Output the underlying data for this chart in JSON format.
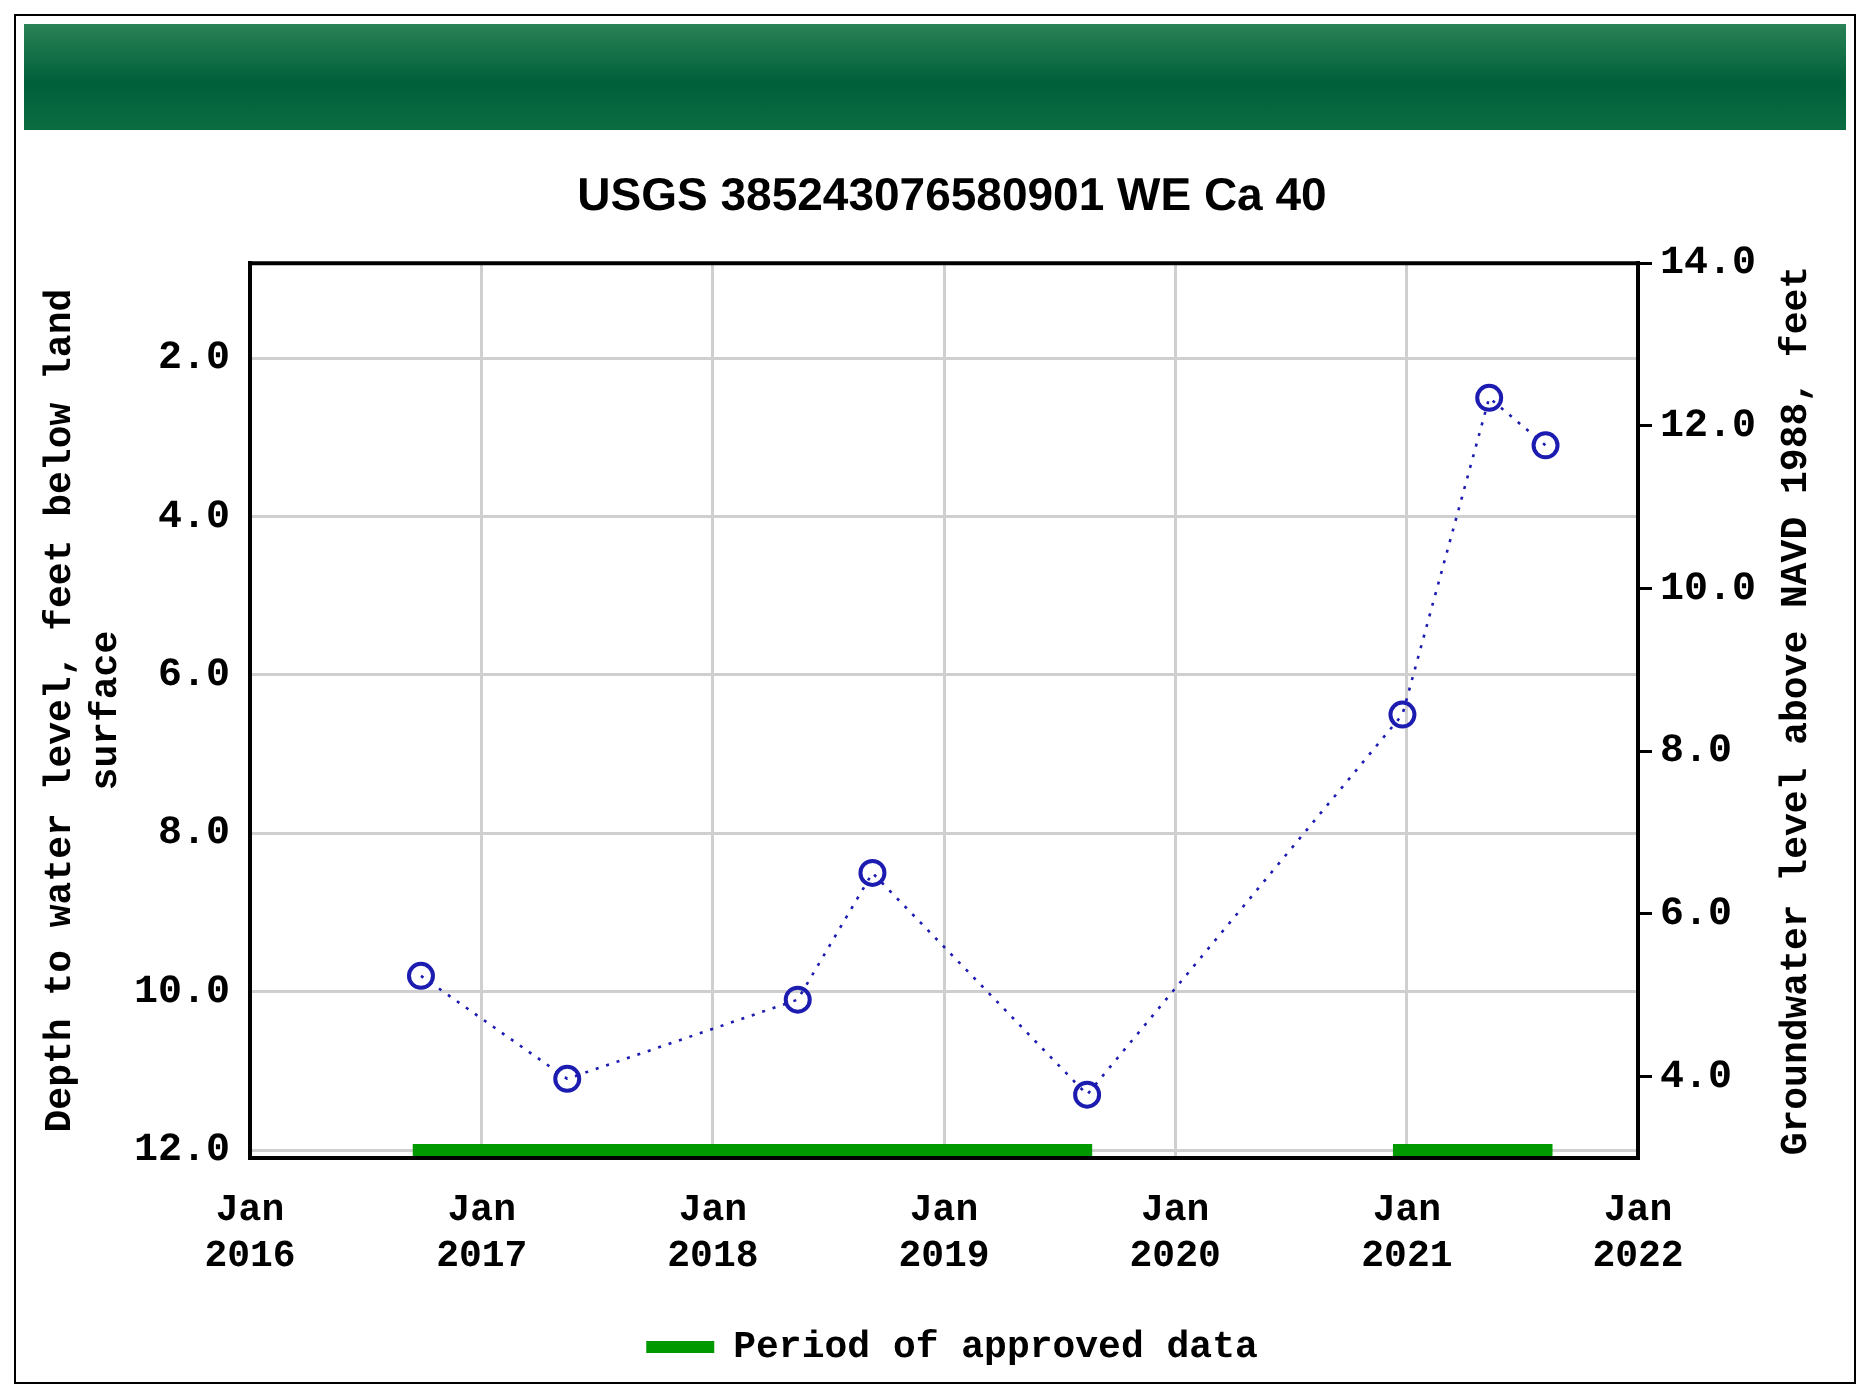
{
  "chart_data": {
    "type": "line",
    "title": "USGS 385243076580901 WE Ca 40",
    "ylabel": "Depth to water level, feet below land surface",
    "y2label": "Groundwater level above NAVD 1988, feet",
    "x": [
      "2016-09-27",
      "2017-05-16",
      "2018-05-15",
      "2018-09-10",
      "2019-08-15",
      "2020-12-25",
      "2021-05-11",
      "2021-08-08"
    ],
    "series": [
      {
        "color": "#1c1cb0",
        "values": [
          9.8,
          11.1,
          10.1,
          8.5,
          11.3,
          6.5,
          2.5,
          3.1
        ]
      },
      {
        "name": "Period of approved data",
        "color": "#009900",
        "marker": "none",
        "line_style": "solid",
        "x": [
          "2016-09-14",
          "2019-08-23",
          "2020-04-01",
          "2020-12-10",
          "2021-08-19"
        ],
        "values": [
          12.0,
          12.0,
          null,
          12.0,
          12.0
        ]
      }
    ],
    "xlim": [
      "2016-01",
      "2022-01"
    ],
    "xticks": [
      {
        "value": "2016-01",
        "label": "Jan 2016"
      },
      {
        "value": "2017-01",
        "label": "Jan 2017"
      },
      {
        "value": "2018-01",
        "label": "Jan 2018"
      },
      {
        "value": "2019-01",
        "label": "Jan 2019"
      },
      {
        "value": "2020-01",
        "label": "Jan 2020"
      },
      {
        "value": "2021-01",
        "label": "Jan 2021"
      },
      {
        "value": "2022-01",
        "label": "Jan 2022"
      }
    ],
    "ylim": [
      12.1,
      0.8
    ],
    "yticks": [
      {
        "value": 2,
        "label": "2.0"
      },
      {
        "value": 4,
        "label": "4.0"
      },
      {
        "value": 6,
        "label": "6.0"
      },
      {
        "value": 8,
        "label": "8.0"
      },
      {
        "value": 10,
        "label": "10.0"
      },
      {
        "value": 12,
        "label": "12.0"
      }
    ],
    "y2lim": [
      3.0,
      14.0
    ],
    "y2ticks": [
      {
        "value": 4,
        "label": "4.0"
      },
      {
        "value": 6,
        "label": "6.0"
      },
      {
        "value": 8,
        "label": "8.0"
      },
      {
        "value": 10,
        "label": "10.0"
      },
      {
        "value": 12,
        "label": "12.0"
      },
      {
        "value": 14,
        "label": "14.0"
      }
    ],
    "legend": "bottom",
    "grid": true,
    "marker": "circle",
    "line_style": "dotted"
  }
}
